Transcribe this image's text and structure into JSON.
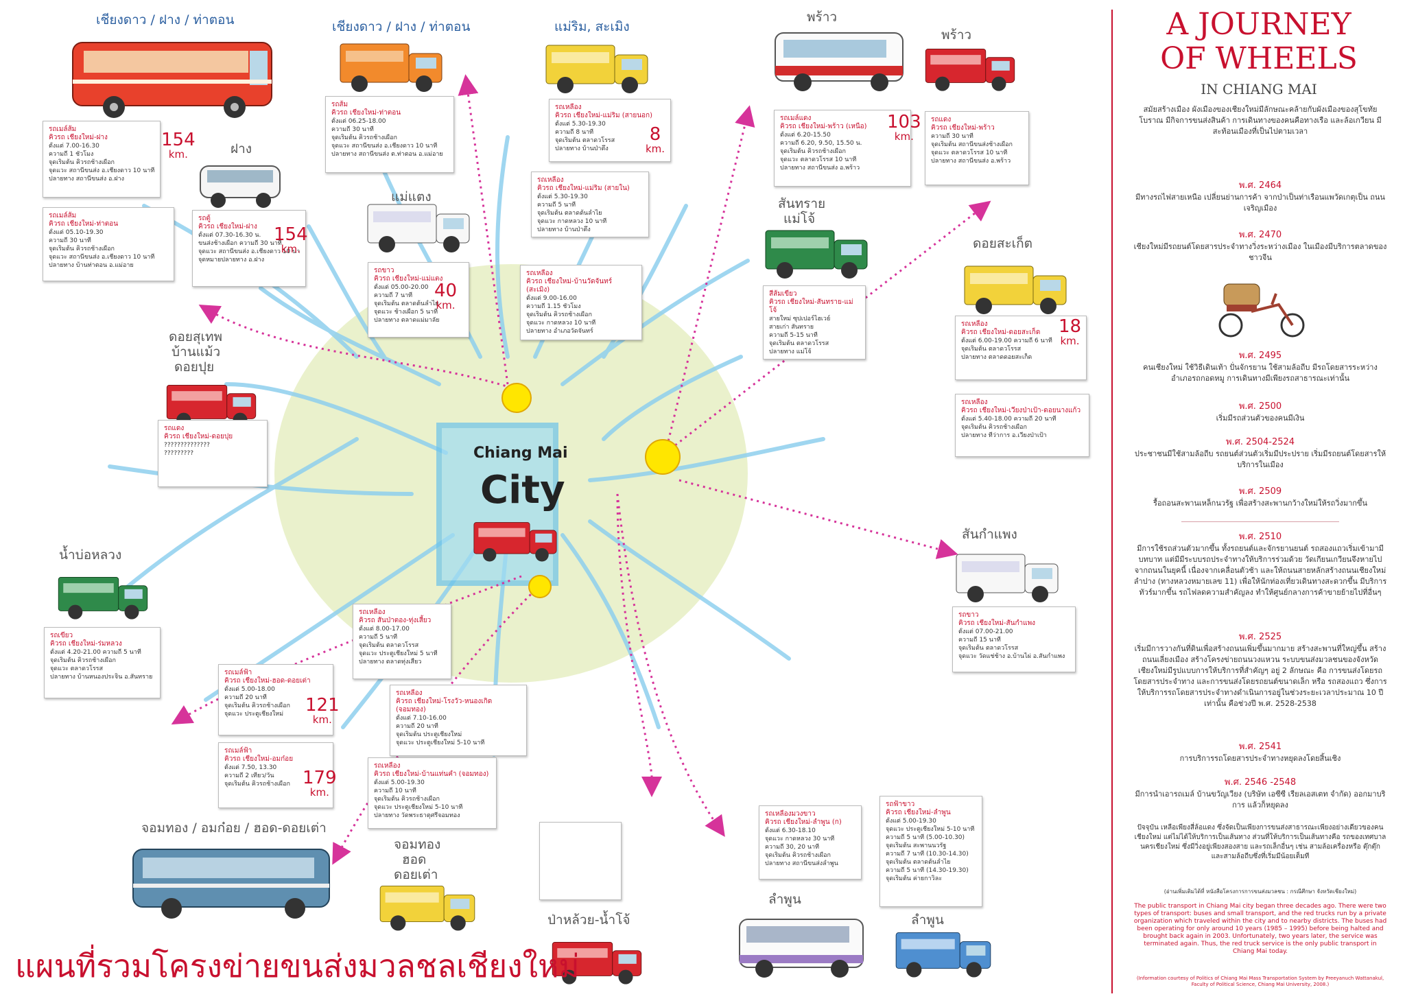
{
  "map": {
    "title": "แผนที่รวมโครงข่ายขนส่งมวลชลเชียงใหม่",
    "city_label_top": "Chiang Mai",
    "city_label_bottom": "City",
    "colors": {
      "route_arrow": "#d6339a",
      "accent_red": "#c8102e",
      "water_blue": "#8fd0ee",
      "city_green": "#e8efc6",
      "hub_yellow": "#ffe600"
    }
  },
  "places": {
    "p1": "เชียงดาว / ฝาง / ท่าตอน",
    "p2": "เชียงดาว / ฝาง / ท่าตอน",
    "p3": "แม่ริม, สะเมิง",
    "p4": "พร้าว",
    "p5": "พร้าว",
    "p6": "ฝาง",
    "p7": "แม่แตง",
    "p8a": "สันทราย",
    "p8b": "แม่โจ้",
    "p9": "ดอยสะเก็ต",
    "p10a": "ดอยสุเทพ",
    "p10b": "บ้านแม้ว",
    "p10c": "ดอยปุย",
    "p11": "น้ำบ่อหลวง",
    "p12": "สันกำแพง",
    "p13": "จอมทอง / อมก๋อย / ฮอด-ดอยเต่า",
    "p14a": "จอมทอง",
    "p14b": "ฮอด",
    "p14c": "ดอยเต่า",
    "p15": "ป่าหล้วย-น้ำโจ้",
    "p16": "ลำพูน",
    "p17": "ลำพูน"
  },
  "cards": {
    "c1": {
      "title": "รถเมล์ส้ม",
      "route": "คิวรถ เชียงใหม่-ฝาง",
      "lines": [
        "ตั้งแต่ 7.00-16.30",
        "ความถี่ 1 ชั่วโมง",
        "จุดเริ่มต้น คิวรถช้างเผือก",
        "จุดแวะ สถานีขนส่ง อ.เชียงดาว 10 นาที",
        "ปลายทาง สถานีขนส่ง อ.ฝาง"
      ],
      "distance": "154",
      "unit": "km."
    },
    "c2": {
      "title": "รถเมล์ส้ม",
      "route": "คิวรถ เชียงใหม่-ท่าตอน",
      "lines": [
        "ตั้งแต่ 05.10-19.30",
        "ความถี่ 30 นาที",
        "จุดเริ่มต้น คิวรถช้างเผือก",
        "จุดแวะ สถานีขนส่ง อ.เชียงดาว 10 นาที",
        "ปลายทาง บ้านท่าตอน อ.แม่อาย"
      ]
    },
    "c3": {
      "title": "รถตู้",
      "route": "คิวรถ เชียงใหม่-ฝาง",
      "lines": [
        "ตั้งแต่ 07.30-16.30 น.",
        "ขนส่งช้างเผือก ความถี่ 30 นาที",
        "จุดแวะ สถานีขนส่ง อ.เชียงดาว 10 นาที",
        "จุดหมายปลายทาง อ.ฝาง"
      ],
      "distance": "154",
      "unit": "km."
    },
    "c4": {
      "title": "รถส้ม",
      "route": "คิวรถ เชียงใหม่-ท่าตอน",
      "lines": [
        "ตั้งแต่ 06.25-18.00",
        "ความถี่ 30 นาที",
        "จุดเริ่มต้น คิวรถช้างเผือก",
        "จุดแวะ สถานีขนส่ง อ.เชียงดาว 10 นาที",
        "ปลายทาง สถานีขนส่ง ต.ท่าตอน อ.แม่อาย"
      ]
    },
    "c5": {
      "title": "รถเหลือง",
      "route": "คิวรถ เชียงใหม่-แม่ริม (สายนอก)",
      "lines": [
        "ตั้งแต่ 5.30-19.30",
        "ความถี่ 8 นาที",
        "จุดเริ่มต้น ตลาดวโรรส",
        "ปลายทาง บ้านป่าตึง"
      ],
      "distance": "8",
      "unit": "km."
    },
    "c6": {
      "title": "รถเหลือง",
      "route": "คิวรถ เชียงใหม่-แม่ริม (สายใน)",
      "lines": [
        "ตั้งแต่ 5.30-19.30",
        "ความถี่ 5 นาที",
        "จุดเริ่มต้น ตลาดต้นลำไย",
        "จุดแวะ กาดหลวง 10 นาที",
        "ปลายทาง บ้านป่าตึง"
      ]
    },
    "c7": {
      "title": "รถเมล์แดง",
      "route": "คิวรถ เชียงใหม่-พร้าว (เหนือ)",
      "lines": [
        "ตั้งแต่ 6.20-15.50",
        "ความถี่ 6.20, 9.50, 15.50 น.",
        "จุดเริ่มต้น คิวรถช้างเผือก",
        "จุดแวะ ตลาดวโรรส 10 นาที",
        "ปลายทาง สถานีขนส่ง อ.พร้าว"
      ],
      "distance": "103",
      "unit": "km."
    },
    "c8": {
      "title": "รถแดง",
      "route": "คิวรถ เชียงใหม่-พร้าว",
      "lines": [
        "ความถี่ 30 นาที",
        "จุดเริ่มต้น สถานีขนส่งช้างเผือก",
        "จุดแวะ ตลาดวโรรส 10 นาที",
        "ปลายทาง สถานีขนส่ง อ.พร้าว"
      ]
    },
    "c9": {
      "title": "รถขาว",
      "route": "คิวรถ เชียงใหม่-แม่แตง",
      "lines": [
        "ตั้งแต่ 05.00-20.00",
        "ความถี่ 7 นาที",
        "จุดเริ่มต้น ตลาดต้นลำไย",
        "จุดแวะ ช้างเผือก 5 นาที",
        "ปลายทาง ตลาดแม่มาลัย"
      ],
      "distance": "40",
      "unit": "km."
    },
    "c10": {
      "title": "รถเหลือง",
      "route": "คิวรถ เชียงใหม่-บ้านวัดจันทร์ (สะเมิง)",
      "lines": [
        "ตั้งแต่ 9.00-16.00",
        "ความถี่ 1.15 ชั่วโมง",
        "จุดเริ่มต้น คิวรถช้างเผือก",
        "จุดแวะ กาดหลวง 10 นาที",
        "ปลายทาง อำเภอวัดจันทร์"
      ]
    },
    "c11": {
      "title": "สีส้มเขียว",
      "route": "คิวรถ เชียงใหม่-สันทราย-แม่โจ้",
      "lines": [
        "สายใหม่ ซุปเปอร์ไฮเวย์",
        "สายเก่า สันทราย",
        "ความถี่ 5-15 นาที",
        "จุดเริ่มต้น ตลาดวโรรส",
        "ปลายทาง แม่โจ้"
      ]
    },
    "c12": {
      "title": "รถเหลือง",
      "route": "คิวรถ เชียงใหม่-ดอยสะเก็ด",
      "lines": [
        "ตั้งแต่ 6.00-19.00 ความถี่ 6 นาที",
        "จุดเริ่มต้น ตลาดวโรรส",
        "ปลายทาง ตลาดดอยสะเก็ด"
      ],
      "distance": "18",
      "unit": "km."
    },
    "c13": {
      "title": "รถเหลือง",
      "route": "คิวรถ เชียงใหม่-เวียงป่าเป้า-ดอยนางแก้ว",
      "lines": [
        "ตั้งแต่ 5.40-18.00 ความถี่ 20 นาที",
        "จุดเริ่มต้น คิวรถช้างเผือก",
        "ปลายทาง ที่ว่าการ อ.เวียงป่าเป้า"
      ]
    },
    "c14": {
      "title": "รถแดง",
      "route": "คิวรถ เชียงใหม่-ดอยปุย",
      "lines": [
        "??????????????",
        "?????????"
      ]
    },
    "c15": {
      "title": "รถเขียว",
      "route": "คิวรถ เชียงใหม่-ร่มหลวง",
      "lines": [
        "ตั้งแต่ 4.20-21.00 ความถี่ 5 นาที",
        "จุดเริ่มต้น คิวรถช้างเผือก",
        "จุดแวะ ตลาดวโรรส",
        "ปลายทาง บ้านหนองประจิน อ.สันทราย"
      ]
    },
    "c16": {
      "title": "รถเหลือง",
      "route": "คิวรถ สันป่าตอง-ทุ่งเสี้ยว",
      "lines": [
        "ตั้งแต่ 8.00-17.00",
        "ความถี่ 5 นาที",
        "จุดเริ่มต้น ตลาดวโรรส",
        "จุดแวะ ประตูเชียงใหม่ 5 นาที",
        "ปลายทาง ตลาดทุ่งเสี้ยว"
      ]
    },
    "c17": {
      "title": "รถเมล์ฟ้า",
      "route": "คิวรถ เชียงใหม่-ฮอด-ดอยเต่า",
      "lines": [
        "ตั้งแต่ 5.00-18.00",
        "ความถี่ 20 นาที",
        "จุดเริ่มต้น คิวรถช้างเผือก",
        "จุดแวะ ประตูเชียงใหม่"
      ],
      "distance": "121",
      "unit": "km."
    },
    "c18": {
      "title": "รถเมล์ฟ้า",
      "route": "คิวรถ เชียงใหม่-อมก๋อย",
      "lines": [
        "ตั้งแต่ 7.50, 13.30",
        "ความถี่ 2 เที่ยว/วัน",
        "จุดเริ่มต้น คิวรถช้างเผือก"
      ],
      "distance": "179",
      "unit": "km."
    },
    "c19": {
      "title": "รถเหลือง",
      "route": "คิวรถ เชียงใหม่-โรงวัว-หนองเกิด (จอมทอง)",
      "lines": [
        "ตั้งแต่ 7.10-16.00",
        "ความถี่ 20 นาที",
        "จุดเริ่มต้น ประตูเชียงใหม่",
        "จุดแวะ ประตูเชียงใหม่ 5-10 นาที"
      ]
    },
    "c20": {
      "title": "รถเหลือง",
      "route": "คิวรถ เชียงใหม่-บ้านแท่นคำ (จอมทอง)",
      "lines": [
        "ตั้งแต่ 5.00-19.30",
        "ความถี่ 10 นาที",
        "จุดเริ่มต้น คิวรถช้างเผือก",
        "จุดแวะ ประตูเชียงใหม่ 5-10 นาที",
        "ปลายทาง วัดพระธาตุศรีจอมทอง"
      ]
    },
    "c21": {
      "title": "รถขาว",
      "route": "คิวรถ เชียงใหม่-สันกำแพง",
      "lines": [
        "ตั้งแต่ 07.00-21.00",
        "ความถี่ 15 นาที",
        "จุดเริ่มต้น ตลาดวโรรส",
        "จุดแวะ วัดแช่ช้าง อ.บ้านไผ่ อ.สันกำแพง"
      ]
    },
    "c22": {
      "title": "รถเหลืองมวงขาว",
      "route": "คิวรถ เชียงใหม่-ลำพูน (ก)",
      "lines": [
        "ตั้งแต่ 6.30-18.10",
        "จุดแวะ กาดหลวง 30 นาที",
        "ความถี่ 30, 20 นาที",
        "จุดเริ่มต้น คิวรถช้างเผือก",
        "ปลายทาง สถานีขนส่งลำพูน"
      ]
    },
    "c23": {
      "title": "รถฟ้าขาว",
      "route": "คิวรถ เชียงใหม่-ลำพูน",
      "lines": [
        "ตั้งแต่ 5.00-19.30",
        "จุดแวะ ประตูเชียงใหม่ 5-10 นาที",
        "ความถี่ 5 นาที (5.00-10.30)",
        "จุดเริ่มต้น สะพานนวรัฐ",
        "ความถี่ 7 นาที (10.30-14.30)",
        "จุดเริ่มต้น ตลาดต้นลำไย",
        "ความถี่ 5 นาที (14.30-19.30)",
        "จุดเริ่มต้น ค่ายกาวิละ"
      ]
    }
  },
  "timeline": {
    "title_line1": "A JOURNEY",
    "title_line2": "OF WHEELS",
    "subtitle": "IN CHIANG MAI",
    "intro": "สมัยสร้างเมือง ผังเมืองของเชียงใหม่มีลักษณะคล้ายกับผังเมืองของสุโขทัยโบราณ มีกิจการขนส่งสินค้า การเดินทางของคนคือทางเรือ และล้อเกวียน มีสะท้อนเมืองที่เป็นไปตามเวลา",
    "entries": [
      {
        "year": "พ.ศ. 2464",
        "text": "มีทางรถไฟสายเหนือ เปลี่ยนย่านการค้า จากป่าเป็นท่าเรือนแพวัดเกตุเป็น ถนนเจริญเมือง"
      },
      {
        "year": "พ.ศ. 2470",
        "text": "เชียงใหม่มีรถยนต์โดยสารประจำทางวิ่งระหว่างเมือง ในเมืองมีบริการตลาดของชาวจีน"
      },
      {
        "year": "พ.ศ. 2495",
        "text": "คนเชียงใหม่ ใช้วิธีเดินเท้า ปั่นจักรยาน ใช้สามล้อถีบ มีรถโดยสารระหว่างอำเภอรถกอดหมู การเดินทางมีเพียงรถสาธารณะเท่านั้น"
      },
      {
        "year": "พ.ศ. 2500",
        "text": "เริ่มมีรถส่วนตัวของคนมีเงิน"
      },
      {
        "year": "พ.ศ. 2504-2524",
        "text": "ประชาชนมีใช้สามล้อถีบ รถยนต์ส่วนตัวเริ่มมีประปราย เริ่มมีรถยนต์โดยสารให้บริการในเมือง"
      },
      {
        "year": "พ.ศ. 2509",
        "text": "รื้อถอนสะพานเหล็กนวรัฐ เพื่อสร้างสะพานกว้างใหม่ให้รถวิ่งมากขึ้น"
      },
      {
        "year": "พ.ศ. 2510",
        "text": "มีการใช้รถส่วนตัวมากขึ้น ทั้งรถยนต์และจักรยานยนต์ รถสองแถวเริ่มเข้ามามีบทบาท แต่มีมีระบบรถประจำทางให้บริการร่วมด้วย วัดเกียนเกวียนจึงหายไปจากถนนในยุคนี้ เนื่องจากเคลื่อนตัวช้า และให้ถนนสายหลักสร้างถนนเชียงใหม่ลำปาง (ทางหลวงหมายเลข 11) เพื่อให้นักท่องเที่ยวเดินทางสะดวกขึ้น มีบริการทัวร์มากขึ้น รถไฟลดความสำคัญลง ทำให้ศูนย์กลางการค้าขายย้ายไปที่อื่นๆ"
      },
      {
        "year": "พ.ศ. 2525",
        "text": "เริ่มมีการวางกันที่ดินเพื่อสร้างถนนเพิ่มขึ้นมากมาย สร้างสะพานที่ใหญ่ขึ้น สร้างถนนเลี่ยงเมือง สร้างโครงข่ายถนนวงแหวน ระบบขนส่งมวลชนของจังหวัดเชียงใหม่มีรูปแบบการให้บริการที่สำคัญๆ อยู่ 2 ลักษณะ คือ การขนส่งโดยรถโดยสารประจำทาง และการขนส่งโดยรถยนต์ขนาดเล็ก หรือ รถสองแถว ซึ่งการให้บริการรถโดยสารประจำทางดำเนินการอยู่ในช่วงระยะเวลาประมาณ 10 ปีเท่านั้น คือช่วงปี พ.ศ. 2528-2538"
      },
      {
        "year": "พ.ศ. 2541",
        "text": "การบริการรถโดยสารประจำทางหยุดลงโดยสิ้นเชิง"
      },
      {
        "year": "พ.ศ. 2546 -2548",
        "text": "มีการนำเอารถเมล์ บ้านขวัญเวียง (บริษัท เอซีซี เรียลเอสเตท จำกัด) ออกมาบริการ แล้วก็หยุดลง"
      }
    ],
    "closing": "ปัจจุบัน เหลือเพียงสี่ล้อแดง ซึ่งจัดเป็นเพียงการขนส่งสาธารณะเพียงอย่างเดียวของคนเชียงใหม่ แต่ไม่ได้ให้บริการเป็นเส้นทาง ส่วนที่ให้บริการเป็นเส้นทางคือ รถของเทศบาลนครเชียงใหม่ ซึ่งมีวิ่งอยู่เพียงสองสาย และรถเล็กอื่นๆ เช่น สามล้อเครื่องหรือ ตุ๊กตุ๊ก และสามล้อถีบซึ่งที่เริ่มมีน้อยเต็มที",
    "source_th": "(อ่านเพิ่มเติมได้ที่ หนังสือโครงการการขนส่งมวลชน : กรณีศึกษา จังหวัดเชียงใหม่)",
    "english": "The public transport in Chiang Mai city began three decades ago. There were two types of transport: buses and small transport, and the red trucks run by a private organization which traveled within the city and to nearby districts. The buses had been operating for only around 10 years (1985 – 1995) before being halted and brought back again in 2003. Unfortunately, two years later, the service was terminated again. Thus, the red truck service is the only public transport in Chiang Mai today.",
    "source_en": "(Information courtesy of Politics of Chiang Mai Mass Transportation System by Preeyanuch Wattanakul, Faculty of Political Science, Chiang Mai University, 2008.)"
  }
}
